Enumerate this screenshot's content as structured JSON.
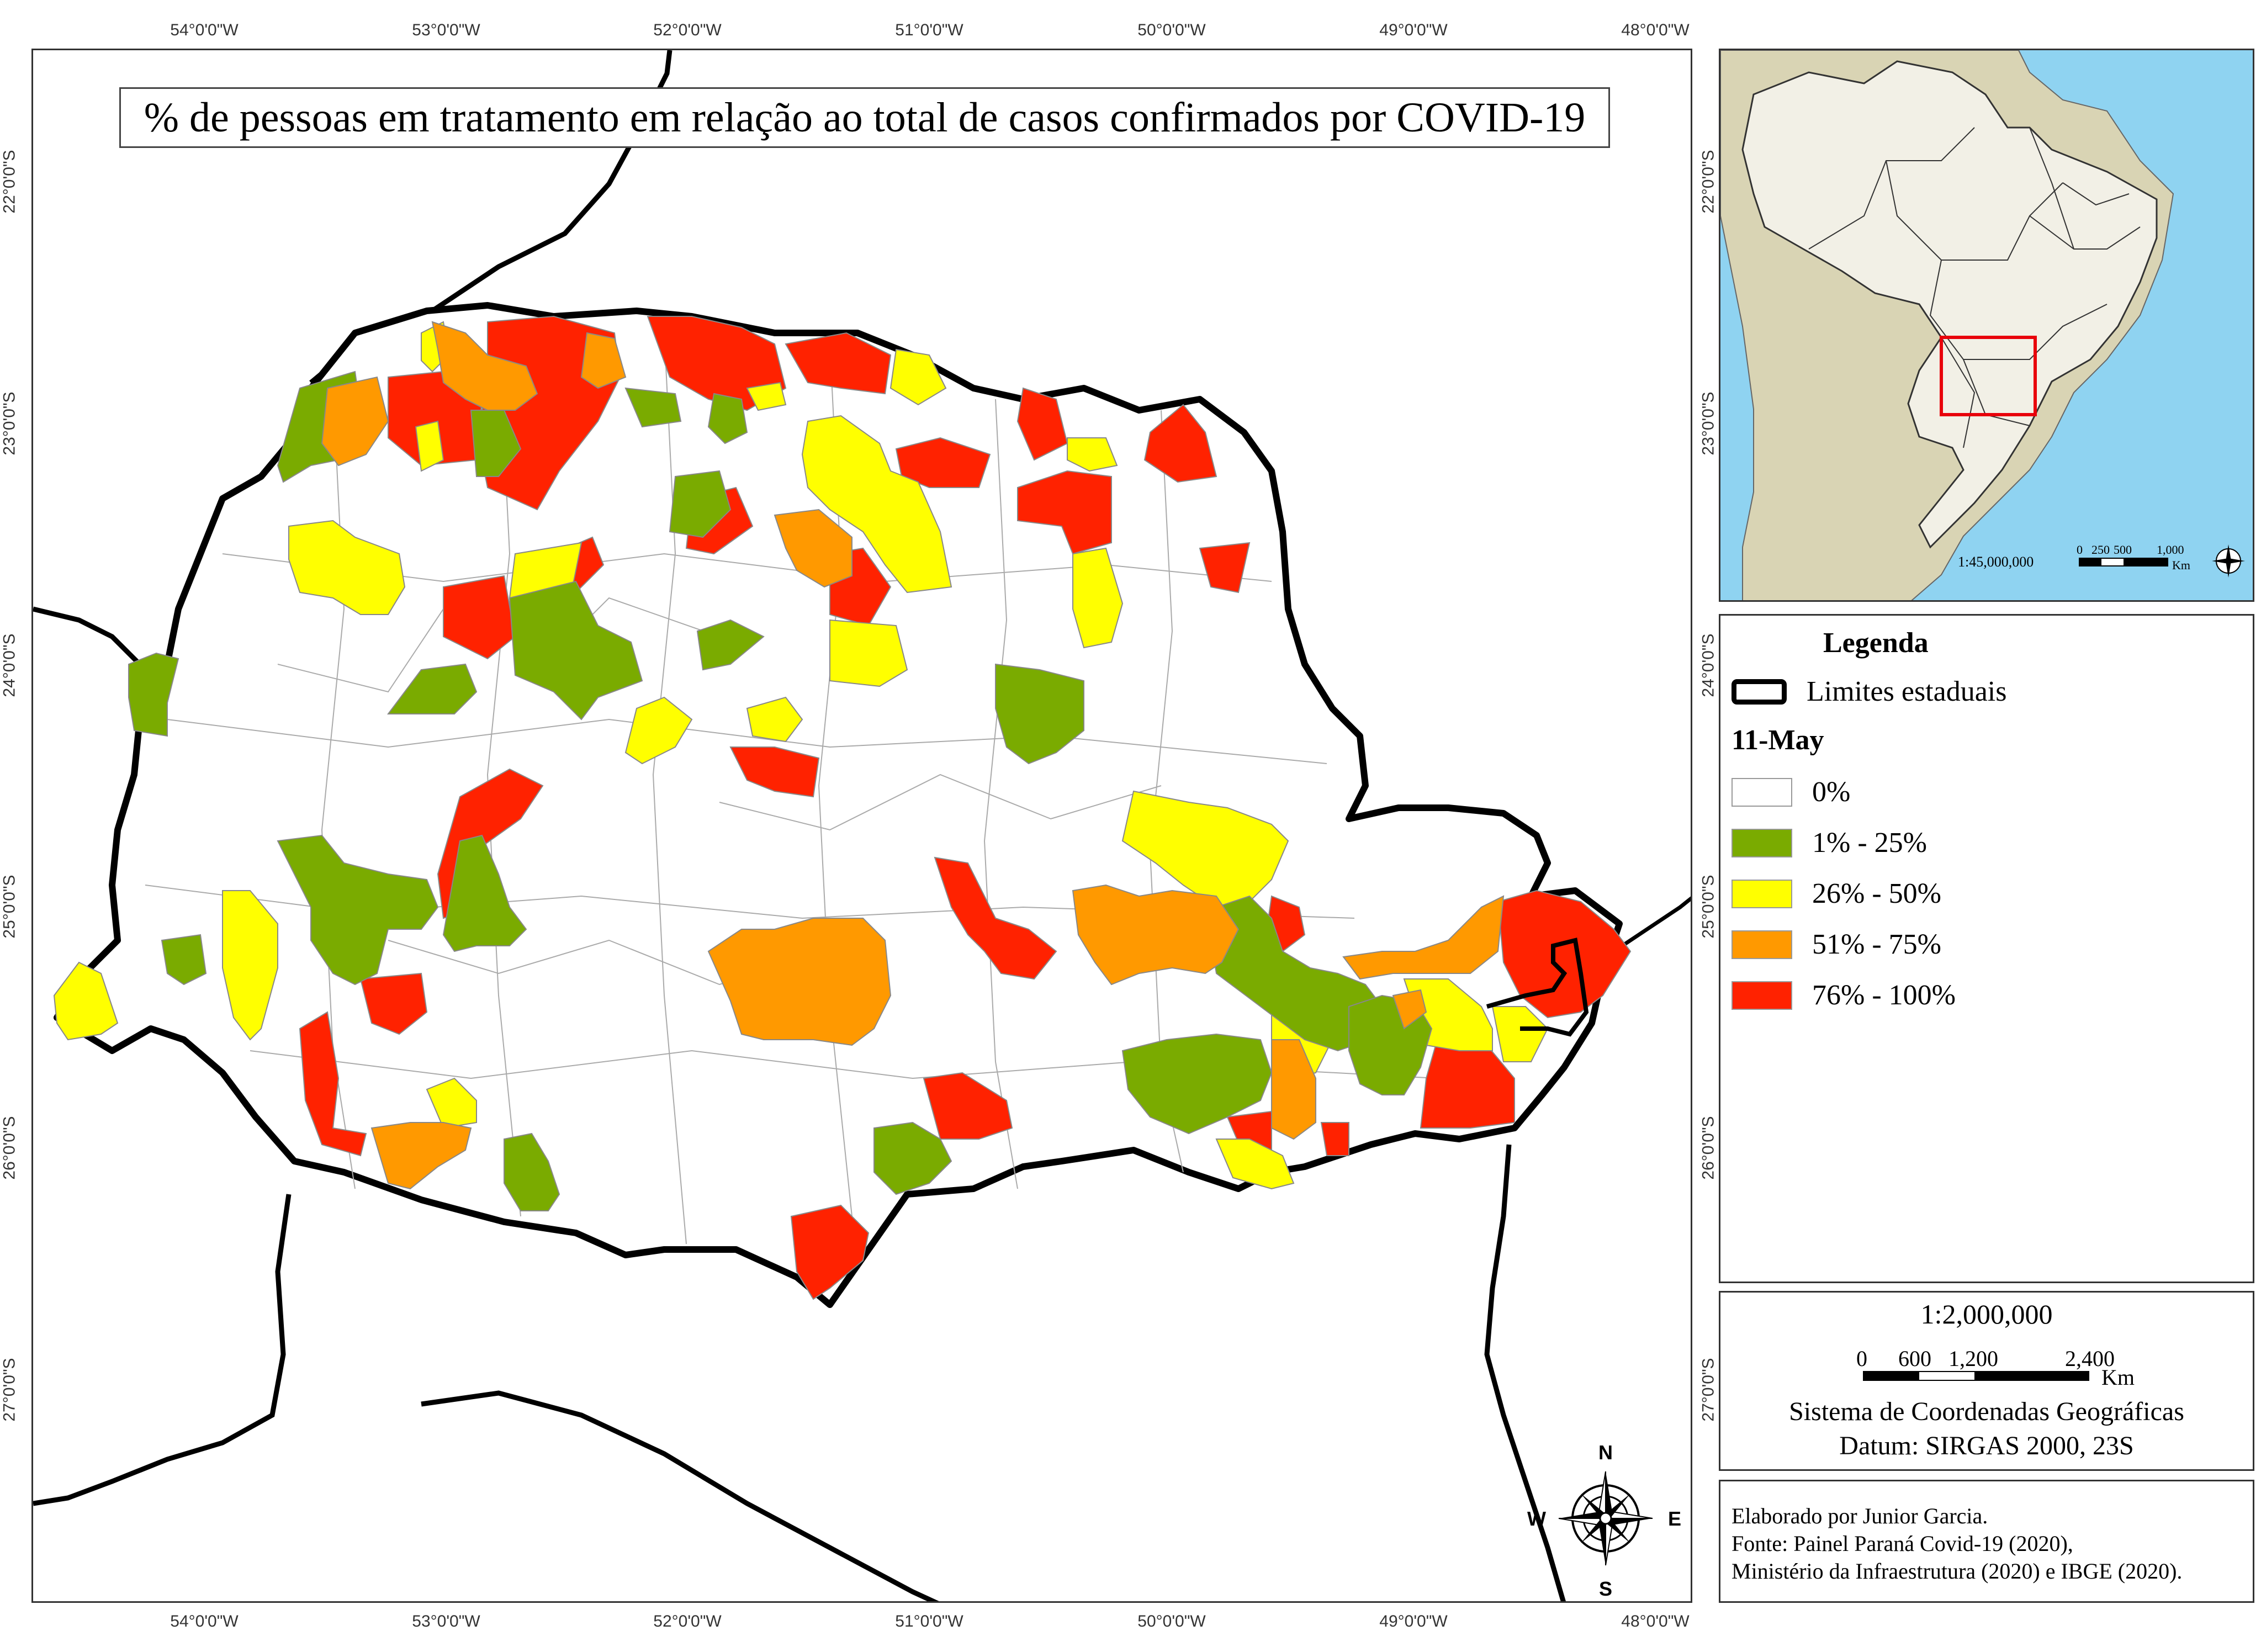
{
  "title": "% de pessoas em tratamento em relação ao total de casos confirmados por COVID-19",
  "coordinates": {
    "longitudes": [
      "54°0'0\"W",
      "53°0'0\"W",
      "52°0'0\"W",
      "51°0'0\"W",
      "50°0'0\"W",
      "49°0'0\"W",
      "48°0'0\"W"
    ],
    "latitudes": [
      "22°0'0\"S",
      "23°0'0\"S",
      "24°0'0\"S",
      "25°0'0\"S",
      "26°0'0\"S",
      "27°0'0\"S"
    ]
  },
  "legend": {
    "title": "Legenda",
    "boundary_label": "Limites estaduais",
    "date_label": "11-May",
    "classes": [
      {
        "label": "0%",
        "color": "#ffffff"
      },
      {
        "label": "1% - 25%",
        "color": "#7aab00"
      },
      {
        "label": "26% - 50%",
        "color": "#ffff00"
      },
      {
        "label": "51% - 75%",
        "color": "#ff9900"
      },
      {
        "label": "76% - 100%",
        "color": "#ff2200"
      }
    ]
  },
  "inset": {
    "scale_text": "1:45,000,000",
    "scale_ticks": [
      "0",
      "250",
      "500",
      "1,000"
    ],
    "scale_unit": "Km",
    "colors": {
      "ocean": "#8fd3f1",
      "south_america": "#d9d4b4",
      "brazil": "#f2f0e6",
      "highlight": "#e8000b"
    }
  },
  "scale_bar": {
    "ratio": "1:2,000,000",
    "ticks": [
      "0",
      "600",
      "1,200",
      "2,400"
    ],
    "unit": "Km",
    "crs": "Sistema de Coordenadas Geográficas",
    "datum": "Datum: SIRGAS 2000, 23S"
  },
  "credits": {
    "author": "Elaborado por Junior Garcia.",
    "source_1": "Fonte: Painel Paraná Covid-19 (2020),",
    "source_2": "Ministério da Infraestrutura (2020) e IBGE (2020)."
  },
  "north_arrow": {
    "n": "N",
    "s": "S",
    "e": "E",
    "w": "W"
  }
}
